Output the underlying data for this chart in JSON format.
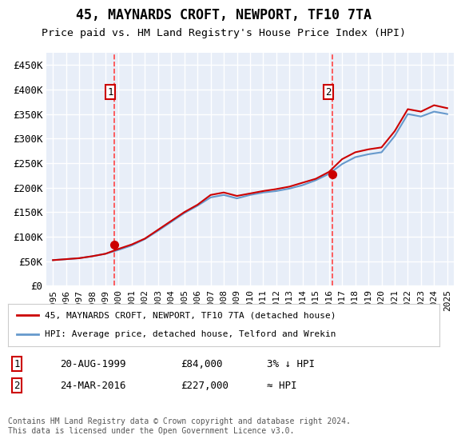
{
  "title": "45, MAYNARDS CROFT, NEWPORT, TF10 7TA",
  "subtitle": "Price paid vs. HM Land Registry's House Price Index (HPI)",
  "ylabel": "",
  "ylim": [
    0,
    475000
  ],
  "yticks": [
    0,
    50000,
    100000,
    150000,
    200000,
    250000,
    300000,
    350000,
    400000,
    450000
  ],
  "ytick_labels": [
    "£0",
    "£50K",
    "£100K",
    "£150K",
    "£200K",
    "£250K",
    "£300K",
    "£350K",
    "£400K",
    "£450K"
  ],
  "background_color": "#e8eef8",
  "plot_bg": "#e8eef8",
  "grid_color": "#ffffff",
  "red_line_color": "#cc0000",
  "blue_line_color": "#6699cc",
  "marker1_date_idx": 4.67,
  "marker1_value": 84000,
  "marker2_date_idx": 21.25,
  "marker2_value": 227000,
  "vline_color": "#ff4444",
  "legend_red_label": "45, MAYNARDS CROFT, NEWPORT, TF10 7TA (detached house)",
  "legend_blue_label": "HPI: Average price, detached house, Telford and Wrekin",
  "table_row1": [
    "1",
    "20-AUG-1999",
    "£84,000",
    "3% ↓ HPI"
  ],
  "table_row2": [
    "2",
    "24-MAR-2016",
    "£227,000",
    "≈ HPI"
  ],
  "footer": "Contains HM Land Registry data © Crown copyright and database right 2024.\nThis data is licensed under the Open Government Licence v3.0.",
  "years": [
    "1995",
    "1996",
    "1997",
    "1998",
    "1999",
    "2000",
    "2001",
    "2002",
    "2003",
    "2004",
    "2005",
    "2006",
    "2007",
    "2008",
    "2009",
    "2010",
    "2011",
    "2012",
    "2013",
    "2014",
    "2015",
    "2016",
    "2017",
    "2018",
    "2019",
    "2020",
    "2021",
    "2022",
    "2023",
    "2024",
    "2025"
  ],
  "hpi_values": [
    52000,
    54000,
    56000,
    60000,
    65000,
    73000,
    82000,
    95000,
    112000,
    130000,
    148000,
    163000,
    180000,
    185000,
    178000,
    185000,
    190000,
    193000,
    198000,
    205000,
    215000,
    228000,
    248000,
    262000,
    268000,
    272000,
    305000,
    350000,
    345000,
    355000,
    350000
  ],
  "red_values": [
    52000,
    54000,
    56000,
    60000,
    65000,
    75000,
    84000,
    96000,
    114000,
    132000,
    150000,
    165000,
    185000,
    190000,
    183000,
    188000,
    193000,
    197000,
    202000,
    210000,
    218000,
    232000,
    258000,
    272000,
    278000,
    282000,
    315000,
    360000,
    355000,
    368000,
    362000
  ]
}
